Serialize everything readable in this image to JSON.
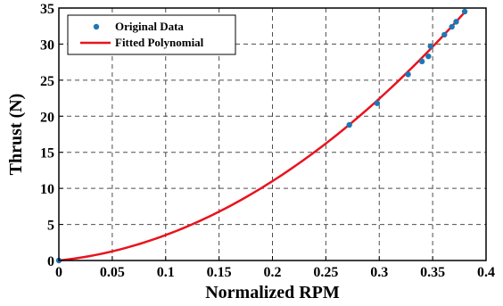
{
  "chart_data": {
    "type": "scatter",
    "title": "",
    "xlabel": "Normalized RPM",
    "ylabel": "Thrust (N)",
    "xlim": [
      0,
      0.4
    ],
    "ylim": [
      0,
      35
    ],
    "xticks": [
      "0",
      "0.05",
      "0.1",
      "0.15",
      "0.2",
      "0.25",
      "0.3",
      "0.35",
      "0.4"
    ],
    "yticks": [
      "0",
      "5",
      "10",
      "15",
      "20",
      "25",
      "30",
      "35"
    ],
    "grid": true,
    "legend_position": "top-left",
    "series": [
      {
        "name": "Original Data",
        "kind": "scatter",
        "color": "#1f77b4",
        "x": [
          0,
          0.272,
          0.298,
          0.327,
          0.34,
          0.346,
          0.348,
          0.361,
          0.368,
          0.372,
          0.38
        ],
        "y": [
          0,
          18.8,
          21.8,
          25.8,
          27.6,
          28.3,
          29.7,
          31.3,
          32.4,
          33.1,
          34.5
        ]
      },
      {
        "name": "Fitted Polynomial",
        "kind": "line",
        "color": "#e8141e",
        "coefficients_quadratic": [
          0,
          15.5,
          197.6
        ],
        "x_range": [
          0,
          0.38
        ]
      }
    ]
  }
}
